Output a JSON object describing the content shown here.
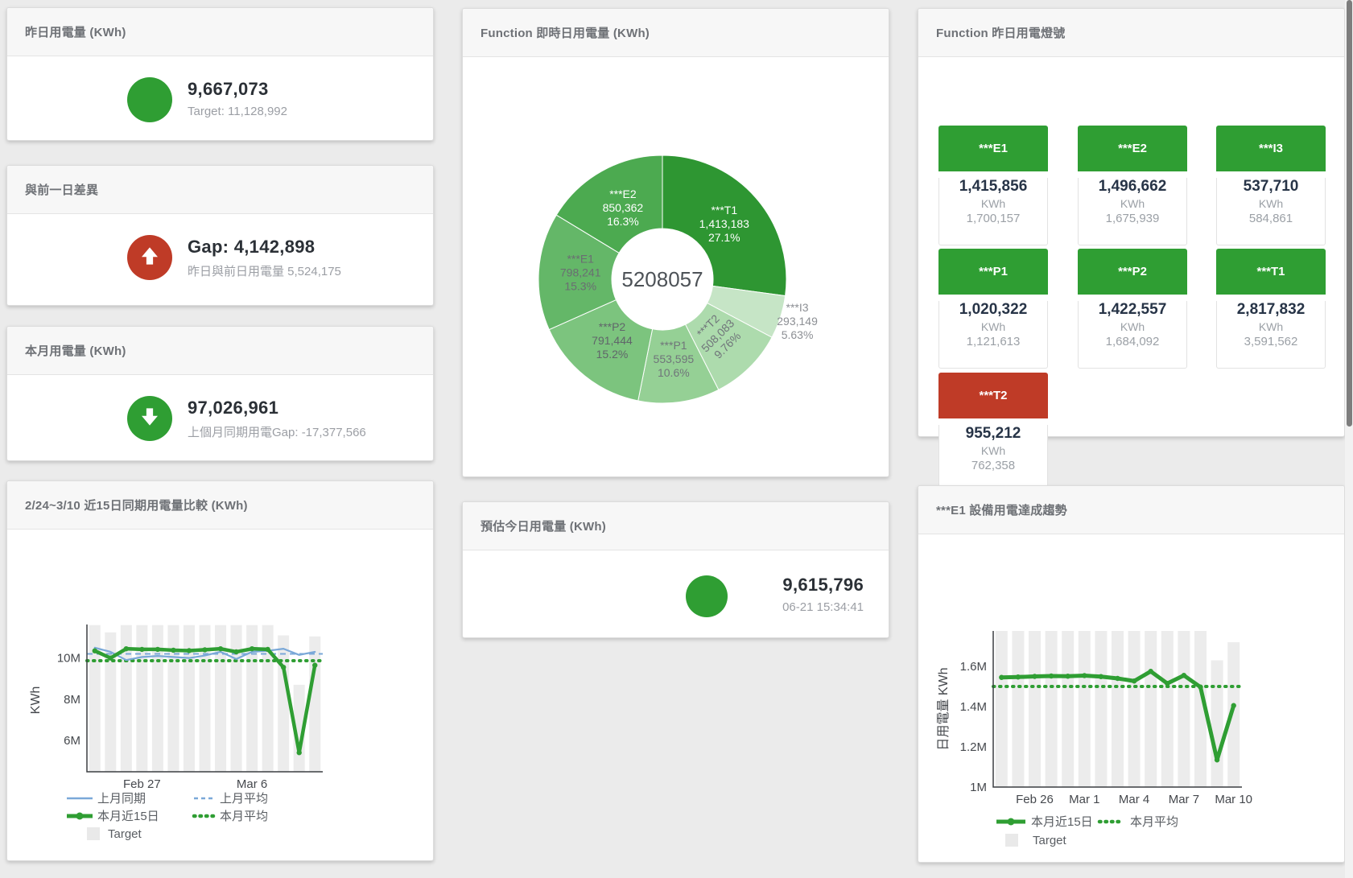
{
  "colors": {
    "green": "#2f9e33",
    "red": "#bf3b27",
    "blue": "#7aa8d8",
    "target_bar": "#ececec",
    "axis": "#3b3e42",
    "tick_text": "#45484d",
    "legend_text": "#595d62",
    "donut_center_text": "#4d5257"
  },
  "cards": {
    "yesterday": {
      "title": "昨日用電量 (KWh)",
      "value": "9,667,073",
      "subtitle": "Target: 11,128,992"
    },
    "gap_prev_day": {
      "title": "與前一日差異",
      "value": "Gap: 4,142,898",
      "subtitle": "昨日與前日用電量 5,524,175"
    },
    "month": {
      "title": "本月用電量 (KWh)",
      "value": "97,026,961",
      "subtitle": "上個月同期用電Gap: -17,377,566"
    },
    "compare15": {
      "title": "2/24~3/10 近15日同期用電量比較 (KWh)"
    },
    "donut": {
      "title": "Function 即時日用電量 (KWh)"
    },
    "today_est": {
      "title": "預估今日用電量 (KWh)",
      "value": "9,615,796",
      "timestamp": "06-21 15:34:41"
    },
    "lights": {
      "title": "Function 昨日用電燈號",
      "tiles": [
        {
          "name": "***E1",
          "value": "1,415,856",
          "unit": "KWh",
          "target": "1,700,157",
          "status": "green"
        },
        {
          "name": "***E2",
          "value": "1,496,662",
          "unit": "KWh",
          "target": "1,675,939",
          "status": "green"
        },
        {
          "name": "***I3",
          "value": "537,710",
          "unit": "KWh",
          "target": "584,861",
          "status": "green"
        },
        {
          "name": "***P1",
          "value": "1,020,322",
          "unit": "KWh",
          "target": "1,121,613",
          "status": "green"
        },
        {
          "name": "***P2",
          "value": "1,422,557",
          "unit": "KWh",
          "target": "1,684,092",
          "status": "green"
        },
        {
          "name": "***T1",
          "value": "2,817,832",
          "unit": "KWh",
          "target": "3,591,562",
          "status": "green"
        },
        {
          "name": "***T2",
          "value": "955,212",
          "unit": "KWh",
          "target": "762,358",
          "status": "red"
        }
      ]
    },
    "e1_trend": {
      "title": "***E1 設備用電達成趨勢"
    }
  },
  "chart_data": [
    {
      "id": "donut",
      "type": "pie",
      "title": "Function 即時日用電量 (KWh)",
      "center_label": "5208057",
      "total": 5208057,
      "slices": [
        {
          "label": "***T1",
          "value": 1413183,
          "display": "1,413,183",
          "pct": "27.1%",
          "color": "#2e9632",
          "label_color": "#ffffff"
        },
        {
          "label": "***I3",
          "value": 293149,
          "display": "293,149",
          "pct": "5.63%",
          "color": "#c6e5c6",
          "label_color": "#8c8f94"
        },
        {
          "label": "***T2",
          "value": 508083,
          "display": "508,083",
          "pct": "9.76%",
          "color": "#addbad",
          "label_color": "#70757a"
        },
        {
          "label": "***P1",
          "value": 553595,
          "display": "553,595",
          "pct": "10.6%",
          "color": "#95d095",
          "label_color": "#70757a"
        },
        {
          "label": "***P2",
          "value": 791444,
          "display": "791,444",
          "pct": "15.2%",
          "color": "#7cc47e",
          "label_color": "#60656a"
        },
        {
          "label": "***E1",
          "value": 798241,
          "display": "798,241",
          "pct": "15.3%",
          "color": "#64b768",
          "label_color": "#6a6d72"
        },
        {
          "label": "***E2",
          "value": 850362,
          "display": "850,362",
          "pct": "16.3%",
          "color": "#4caa50",
          "label_color": "#ffffff"
        }
      ]
    },
    {
      "id": "compare15",
      "type": "line",
      "title": "2/24~3/10 近15日同期用電量比較 (KWh)",
      "unit": "M KWh",
      "categories": [
        "2/24",
        "2/25",
        "2/26",
        "2/27",
        "2/28",
        "3/1",
        "3/2",
        "3/3",
        "3/4",
        "3/5",
        "3/6",
        "3/7",
        "3/8",
        "3/9",
        "3/10"
      ],
      "target": [
        11.6,
        11.25,
        11.6,
        11.6,
        11.6,
        11.6,
        11.6,
        11.6,
        11.6,
        11.6,
        11.6,
        11.6,
        11.1,
        8.7,
        11.05
      ],
      "series": [
        {
          "name": "上月同期",
          "values": [
            10.5,
            10.3,
            9.9,
            10.05,
            10.1,
            10.05,
            10.0,
            10.12,
            10.3,
            9.95,
            10.3,
            10.35,
            10.45,
            10.15,
            10.3
          ]
        },
        {
          "name": "本月近15日",
          "values": [
            10.35,
            10.0,
            10.45,
            10.42,
            10.42,
            10.38,
            10.36,
            10.4,
            10.45,
            10.3,
            10.45,
            10.42,
            9.55,
            5.4,
            9.65
          ]
        }
      ],
      "last_month_avg": 10.2,
      "this_month_avg": 9.87,
      "yticks": [
        {
          "v": 6,
          "label": "6M"
        },
        {
          "v": 8,
          "label": "8M"
        },
        {
          "v": 10,
          "label": "10M"
        }
      ],
      "xticks": [
        {
          "i": 3,
          "label": "Feb 27"
        },
        {
          "i": 10,
          "label": "Mar 6"
        }
      ],
      "ylabel": "KWh",
      "ylim": [
        4.5,
        11.65
      ],
      "legend": [
        "上月同期",
        "上月平均",
        "本月近15日",
        "本月平均",
        "Target"
      ]
    },
    {
      "id": "e1trend",
      "type": "line",
      "title": "***E1 設備用電達成趨勢",
      "unit": "M KWh",
      "categories": [
        "2/24",
        "2/25",
        "2/26",
        "2/27",
        "2/28",
        "3/1",
        "3/2",
        "3/3",
        "3/4",
        "3/5",
        "3/6",
        "3/7",
        "3/8",
        "3/9",
        "3/10"
      ],
      "target": [
        1.78,
        1.78,
        1.78,
        1.78,
        1.78,
        1.78,
        1.78,
        1.78,
        1.78,
        1.78,
        1.78,
        1.78,
        1.78,
        1.63,
        1.72
      ],
      "series": [
        {
          "name": "本月近15日",
          "values": [
            1.545,
            1.547,
            1.55,
            1.552,
            1.551,
            1.554,
            1.549,
            1.54,
            1.527,
            1.575,
            1.515,
            1.555,
            1.497,
            1.135,
            1.405
          ]
        }
      ],
      "this_month_avg": 1.5,
      "yticks": [
        {
          "v": 1,
          "label": "1M"
        },
        {
          "v": 1.2,
          "label": "1.2M"
        },
        {
          "v": 1.4,
          "label": "1.4M"
        },
        {
          "v": 1.6,
          "label": "1.6M"
        }
      ],
      "xticks": [
        {
          "i": 2,
          "label": "Feb 26"
        },
        {
          "i": 5,
          "label": "Mar 1"
        },
        {
          "i": 8,
          "label": "Mar 4"
        },
        {
          "i": 11,
          "label": "Mar 7"
        },
        {
          "i": 14,
          "label": "Mar 10"
        }
      ],
      "ylabel": "日用電量 KWh",
      "ylim": [
        1.0,
        1.78
      ],
      "legend": [
        "本月近15日",
        "本月平均",
        "Target"
      ]
    }
  ]
}
